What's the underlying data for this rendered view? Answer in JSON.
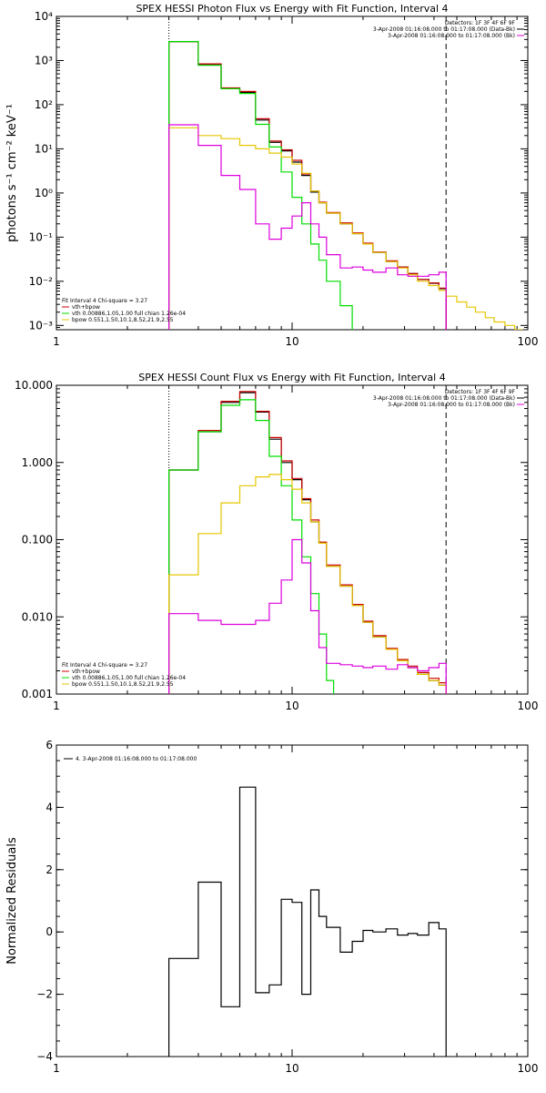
{
  "colors": {
    "black": "#000000",
    "red": "#cc0000",
    "green": "#00dd00",
    "yellow": "#e6c600",
    "magenta": "#dd00dd"
  },
  "chart_data": [
    {
      "type": "line",
      "title": "SPEX HESSI Photon Flux vs Energy with Fit Function, Interval 4",
      "ylabel": "photons s⁻¹ cm⁻² keV⁻¹",
      "xlabel": "",
      "xscale": "log",
      "yscale": "log",
      "xlim": [
        1,
        100
      ],
      "ylim": [
        0.0008,
        10000
      ],
      "x_tick_labels": [
        "1",
        "10",
        "100"
      ],
      "y_ticks": [
        {
          "value": 0.001,
          "label": "10⁻³"
        },
        {
          "value": 0.01,
          "label": "10⁻²"
        },
        {
          "value": 0.1,
          "label": "10⁻¹"
        },
        {
          "value": 1,
          "label": "10⁰"
        },
        {
          "value": 10,
          "label": "10¹"
        },
        {
          "value": 100,
          "label": "10²"
        },
        {
          "value": 1000,
          "label": "10³"
        },
        {
          "value": 10000,
          "label": "10⁴"
        }
      ],
      "vlines": [
        {
          "x": 3.0,
          "style": "dotted"
        },
        {
          "x": 45.0,
          "style": "dashed"
        }
      ],
      "legend_top_right": [
        {
          "text": "Detectors: 1F 3F 4F 6F 9F",
          "color": ""
        },
        {
          "text": "3-Apr-2008 01:16:08.000 to 01:17:08.000 (Data-Bk)",
          "color": "#000000"
        },
        {
          "text": "3-Apr-2008 01:16:08.000 to 01:17:08.000 (Bk)",
          "color": "#dd00dd"
        }
      ],
      "legend_bottom_left": [
        {
          "text": "Fit Interval 4   Chi-square = 3.27",
          "color": ""
        },
        {
          "text": "vth+bpow",
          "color": "#cc0000"
        },
        {
          "text": "vth 0.00886,1.05,1.00  full chian 1.26e-04",
          "color": "#00dd00"
        },
        {
          "text": "bpow 0.551,1.50,10.1,8.52,21.9,2.55",
          "color": "#e6c600"
        }
      ],
      "series": [
        {
          "name": "Data-Bk",
          "color": "#000000",
          "edges": [
            3,
            4,
            5,
            6,
            7,
            8,
            9,
            10,
            11,
            12,
            13,
            14,
            16,
            18,
            20,
            22,
            25,
            28,
            31,
            34,
            38,
            42,
            45
          ],
          "values": [
            2700,
            800,
            230,
            190,
            45,
            14,
            9,
            5,
            2.5,
            1.05,
            0.6,
            0.35,
            0.2,
            0.12,
            0.07,
            0.045,
            0.028,
            0.021,
            0.015,
            0.011,
            0.009,
            0.0068
          ]
        },
        {
          "name": "vth+bpow",
          "color": "#cc0000",
          "edges": [
            3,
            4,
            5,
            6,
            7,
            8,
            9,
            10,
            11,
            12,
            13,
            14,
            16,
            18,
            20,
            22,
            25,
            28,
            31,
            34,
            38,
            42,
            45
          ],
          "values": [
            2700,
            840,
            240,
            200,
            48,
            15,
            9.5,
            5.5,
            2.7,
            1.1,
            0.62,
            0.36,
            0.21,
            0.125,
            0.073,
            0.046,
            0.029,
            0.021,
            0.015,
            0.011,
            0.0092,
            0.007
          ]
        },
        {
          "name": "vth",
          "color": "#00dd00",
          "edges": [
            3,
            4,
            5,
            6,
            7,
            8,
            9,
            10,
            11,
            12,
            13,
            14,
            16,
            18
          ],
          "values": [
            2700,
            780,
            230,
            180,
            36,
            11,
            3,
            0.8,
            0.2,
            0.07,
            0.03,
            0.01,
            0.0028
          ]
        },
        {
          "name": "bpow",
          "color": "#e6c600",
          "edges": [
            3,
            4,
            5,
            6,
            7,
            8,
            9,
            10,
            11,
            12,
            13,
            14,
            16,
            18,
            20,
            22,
            25,
            28,
            31,
            34,
            38,
            42,
            45,
            50,
            55,
            60,
            66,
            72,
            80,
            88,
            95
          ],
          "values": [
            30,
            20,
            17,
            12,
            10,
            8,
            6.5,
            4.5,
            2.8,
            1.1,
            0.6,
            0.35,
            0.2,
            0.12,
            0.07,
            0.045,
            0.028,
            0.02,
            0.014,
            0.01,
            0.008,
            0.0062,
            0.0046,
            0.0034,
            0.0026,
            0.002,
            0.0015,
            0.0012,
            0.001,
            0.0008
          ]
        },
        {
          "name": "Bk",
          "color": "#dd00dd",
          "edges": [
            3,
            4,
            5,
            6,
            7,
            8,
            9,
            10,
            11,
            12,
            13,
            14,
            16,
            18,
            20,
            22,
            25,
            28,
            31,
            34,
            38,
            42,
            45
          ],
          "values": [
            35,
            12,
            2.5,
            1.2,
            0.2,
            0.09,
            0.16,
            0.3,
            0.6,
            0.2,
            0.1,
            0.04,
            0.02,
            0.021,
            0.018,
            0.016,
            0.02,
            0.014,
            0.013,
            0.013,
            0.014,
            0.016
          ]
        }
      ]
    },
    {
      "type": "line",
      "title": "SPEX HESSI Count Flux vs Energy with Fit Function, Interval 4",
      "xlabel": "",
      "ylabel": "",
      "xscale": "log",
      "yscale": "log",
      "xlim": [
        1,
        100
      ],
      "ylim": [
        0.001,
        10
      ],
      "x_tick_labels": [
        "1",
        "10",
        "100"
      ],
      "y_ticks": [
        {
          "value": 0.001,
          "label": "0.001"
        },
        {
          "value": 0.01,
          "label": "0.010"
        },
        {
          "value": 0.1,
          "label": "0.100"
        },
        {
          "value": 1,
          "label": "1.000"
        },
        {
          "value": 10,
          "label": "10.000"
        }
      ],
      "vlines": [
        {
          "x": 3.0,
          "style": "dotted"
        },
        {
          "x": 45.0,
          "style": "dashed"
        }
      ],
      "legend_top_right": [
        {
          "text": "Detectors: 1F 3F 4F 6F 9F",
          "color": ""
        },
        {
          "text": "3-Apr-2008 01:16:08.000 to 01:17:08.000 (Data-Bk)",
          "color": "#000000"
        },
        {
          "text": "3-Apr-2008 01:16:08.000 to 01:17:08.000 (Bk)",
          "color": "#dd00dd"
        }
      ],
      "legend_bottom_left": [
        {
          "text": "Fit Interval 4   Chi-square = 3.27",
          "color": ""
        },
        {
          "text": "vth+bpow",
          "color": "#cc0000"
        },
        {
          "text": "vth 0.00886,1.05,1.00  full chian 1.26e-04",
          "color": "#00dd00"
        },
        {
          "text": "bpow 0.551,1.50,10.1,8.52,21.9,2.55",
          "color": "#e6c600"
        }
      ],
      "series": [
        {
          "name": "Data-Bk",
          "color": "#000000",
          "edges": [
            3,
            4,
            5,
            6,
            7,
            8,
            9,
            10,
            11,
            12,
            13,
            14,
            16,
            18,
            20,
            22,
            25,
            28,
            31,
            34,
            38,
            42,
            45
          ],
          "values": [
            0.8,
            2.5,
            6.0,
            8.0,
            4.5,
            2.0,
            1.0,
            0.6,
            0.33,
            0.17,
            0.09,
            0.045,
            0.025,
            0.014,
            0.0085,
            0.0055,
            0.0038,
            0.0027,
            0.0022,
            0.0018,
            0.0015,
            0.0013
          ]
        },
        {
          "name": "vth+bpow",
          "color": "#cc0000",
          "edges": [
            3,
            4,
            5,
            6,
            7,
            8,
            9,
            10,
            11,
            12,
            13,
            14,
            16,
            18,
            20,
            22,
            25,
            28,
            31,
            34,
            38,
            42,
            45
          ],
          "values": [
            0.8,
            2.6,
            6.2,
            8.3,
            4.6,
            2.1,
            1.05,
            0.62,
            0.34,
            0.18,
            0.093,
            0.047,
            0.026,
            0.0145,
            0.0088,
            0.0057,
            0.0039,
            0.0028,
            0.0023,
            0.0019,
            0.0016,
            0.0014
          ]
        },
        {
          "name": "vth",
          "color": "#00dd00",
          "edges": [
            3,
            4,
            5,
            6,
            7,
            8,
            9,
            10,
            11,
            12,
            13,
            14,
            15
          ],
          "values": [
            0.8,
            2.5,
            5.5,
            6.5,
            3.5,
            1.2,
            0.5,
            0.18,
            0.06,
            0.02,
            0.006,
            0.0015
          ]
        },
        {
          "name": "bpow",
          "color": "#e6c600",
          "edges": [
            3,
            4,
            5,
            6,
            7,
            8,
            9,
            10,
            11,
            12,
            13,
            14,
            16,
            18,
            20,
            22,
            25,
            28,
            31,
            34,
            38,
            42,
            45,
            50
          ],
          "values": [
            0.035,
            0.12,
            0.3,
            0.5,
            0.65,
            0.7,
            0.6,
            0.45,
            0.3,
            0.17,
            0.09,
            0.045,
            0.025,
            0.014,
            0.0085,
            0.0055,
            0.0038,
            0.0027,
            0.0022,
            0.0018,
            0.0015,
            0.0013,
            0.0009
          ]
        },
        {
          "name": "Bk",
          "color": "#dd00dd",
          "edges": [
            3,
            4,
            5,
            6,
            7,
            8,
            9,
            10,
            11,
            12,
            13,
            14,
            16,
            18,
            20,
            22,
            25,
            28,
            31,
            34,
            38,
            42,
            45
          ],
          "values": [
            0.011,
            0.009,
            0.008,
            0.008,
            0.009,
            0.015,
            0.03,
            0.1,
            0.05,
            0.012,
            0.004,
            0.0025,
            0.0024,
            0.0023,
            0.0022,
            0.0023,
            0.0021,
            0.0024,
            0.0022,
            0.002,
            0.0022,
            0.0025
          ]
        }
      ]
    },
    {
      "type": "line",
      "title": "",
      "xlabel": "",
      "ylabel": "Normalized Residuals",
      "xscale": "log",
      "yscale": "linear",
      "xlim": [
        1,
        100
      ],
      "ylim": [
        -4,
        6
      ],
      "x_tick_labels": [
        "1",
        "10",
        "100"
      ],
      "y_ticks": [
        {
          "value": -4,
          "label": "−4"
        },
        {
          "value": -2,
          "label": "−2"
        },
        {
          "value": 0,
          "label": "0"
        },
        {
          "value": 2,
          "label": "2"
        },
        {
          "value": 4,
          "label": "4"
        },
        {
          "value": 6,
          "label": "6"
        }
      ],
      "legend_top_left": [
        {
          "text": "4. 3-Apr-2008 01:16:08.000 to 01:17:08.000",
          "color": "#000000"
        }
      ],
      "series": [
        {
          "name": "4. 3-Apr-2008 01:16:08.000 to 01:17:08.000",
          "color": "#000000",
          "edges": [
            3,
            4,
            5,
            6,
            7,
            8,
            9,
            10,
            11,
            12,
            13,
            14,
            16,
            18,
            20,
            22,
            25,
            28,
            31,
            34,
            38,
            42,
            45
          ],
          "values": [
            -0.85,
            1.6,
            -2.4,
            4.65,
            -1.95,
            -1.7,
            1.05,
            0.95,
            -2.0,
            1.35,
            0.5,
            0.15,
            -0.65,
            -0.3,
            0.05,
            0.0,
            0.1,
            -0.1,
            -0.05,
            -0.1,
            0.3,
            0.1
          ],
          "drop_to_bottom_at_ends": true
        }
      ]
    }
  ]
}
